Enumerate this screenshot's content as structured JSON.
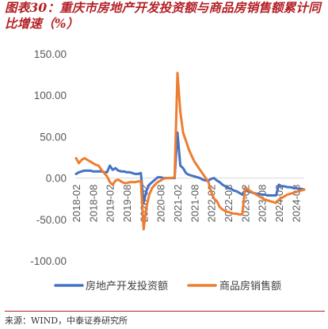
{
  "figure": {
    "title": "图表30：重庆市房地产开发投资额与商品房销售额累计同比增速（%）",
    "source": "来源：WIND，中泰证券研究所"
  },
  "colors": {
    "title": "#b32025",
    "investment": "#4472c4",
    "sales": "#ed7d31",
    "axis": "#d9d9d9",
    "tick_text": "#595959"
  },
  "chart_data": {
    "type": "line",
    "title": "",
    "xlabel": "",
    "ylabel": "",
    "ylim": [
      -100,
      150
    ],
    "yticks": [
      150,
      100,
      50,
      0,
      -50,
      -100
    ],
    "ytick_labels": [
      "150.00",
      "100.00",
      "50.00",
      "0.00",
      "-50.00",
      "-100.00"
    ],
    "grid": false,
    "legend_position": "bottom",
    "x_start": "2018-02",
    "xtick_labels": [
      "2018-02",
      "2018-08",
      "2019-02",
      "2019-08",
      "2020-02",
      "2020-08",
      "2021-02",
      "2021-08",
      "2022-02",
      "2022-08",
      "2023-02",
      "2023-08",
      "2024-02",
      "2024-08"
    ],
    "series": [
      {
        "name": "房地产开发投资额",
        "color": "#4472c4",
        "values": [
          5,
          7,
          8,
          9,
          9,
          9,
          8,
          8,
          8,
          8,
          7,
          7,
          15,
          10,
          12,
          9,
          8,
          8,
          7,
          7,
          6,
          5,
          5,
          6,
          -30,
          -15,
          -8,
          -5,
          -2,
          1,
          1,
          0,
          0,
          0,
          0,
          0,
          55,
          15,
          12,
          6,
          4,
          3,
          2,
          1,
          0,
          -2,
          -3,
          -3,
          -1,
          0,
          -3,
          -5,
          -8,
          -10,
          -12,
          -13,
          -15,
          -16,
          -18,
          -20,
          -15,
          -16,
          -17,
          -18,
          -19,
          -19,
          -20,
          -20,
          -21,
          -21,
          -21,
          -21,
          -8,
          -10,
          -10,
          -11,
          -11,
          -12,
          -12,
          -13,
          -13,
          -14
        ]
      },
      {
        "name": "商品房销售额",
        "color": "#ed7d31",
        "values": [
          24,
          18,
          22,
          24,
          22,
          20,
          18,
          16,
          15,
          10,
          6,
          2,
          -5,
          -8,
          -3,
          -2,
          -4,
          -6,
          -6,
          -5,
          -5,
          -5,
          -4,
          -4,
          -62,
          -35,
          -20,
          -12,
          -8,
          -5,
          -3,
          -1,
          0,
          0,
          0,
          1,
          127,
          80,
          55,
          45,
          35,
          27,
          20,
          15,
          10,
          5,
          0,
          -5,
          -17,
          -25,
          -28,
          -35,
          -38,
          -40,
          -41,
          -42,
          -43,
          -43,
          -44,
          -44,
          -12,
          -14,
          -16,
          -18,
          -20,
          -22,
          -24,
          -26,
          -27,
          -28,
          -29,
          -30,
          -26,
          -24,
          -22,
          -20,
          -19,
          -18,
          -17,
          -16,
          -15,
          -14
        ]
      }
    ]
  }
}
